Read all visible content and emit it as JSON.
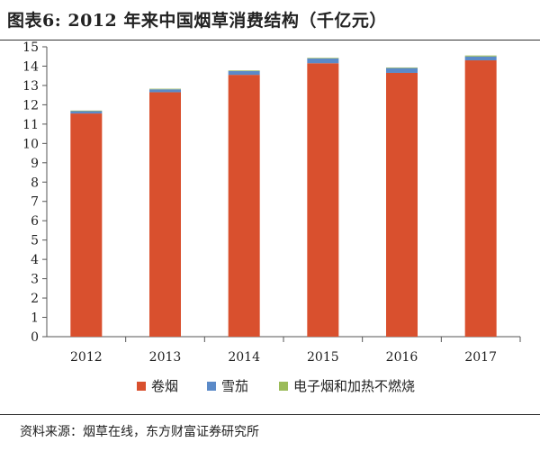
{
  "title": "图表6: 2012 年来中国烟草消费结构（千亿元）",
  "source": "资料来源：烟草在线，东方财富证券研究所",
  "chart_data": {
    "type": "bar",
    "stacked": true,
    "categories": [
      "2012",
      "2013",
      "2014",
      "2015",
      "2016",
      "2017"
    ],
    "series": [
      {
        "name": "卷烟",
        "color": "#d9502e",
        "values": [
          11.55,
          12.65,
          13.55,
          14.15,
          13.65,
          14.3
        ]
      },
      {
        "name": "雪茄",
        "color": "#5b8ac8",
        "values": [
          0.12,
          0.15,
          0.2,
          0.25,
          0.25,
          0.2
        ]
      },
      {
        "name": "电子烟和加热不燃烧",
        "color": "#9bbb59",
        "values": [
          0.03,
          0.03,
          0.03,
          0.03,
          0.03,
          0.05
        ]
      }
    ],
    "ylim": [
      0,
      15
    ],
    "yticks": [
      0,
      1,
      2,
      3,
      4,
      5,
      6,
      7,
      8,
      9,
      10,
      11,
      12,
      13,
      14,
      15
    ],
    "legend_position": "bottom",
    "grid": false
  }
}
